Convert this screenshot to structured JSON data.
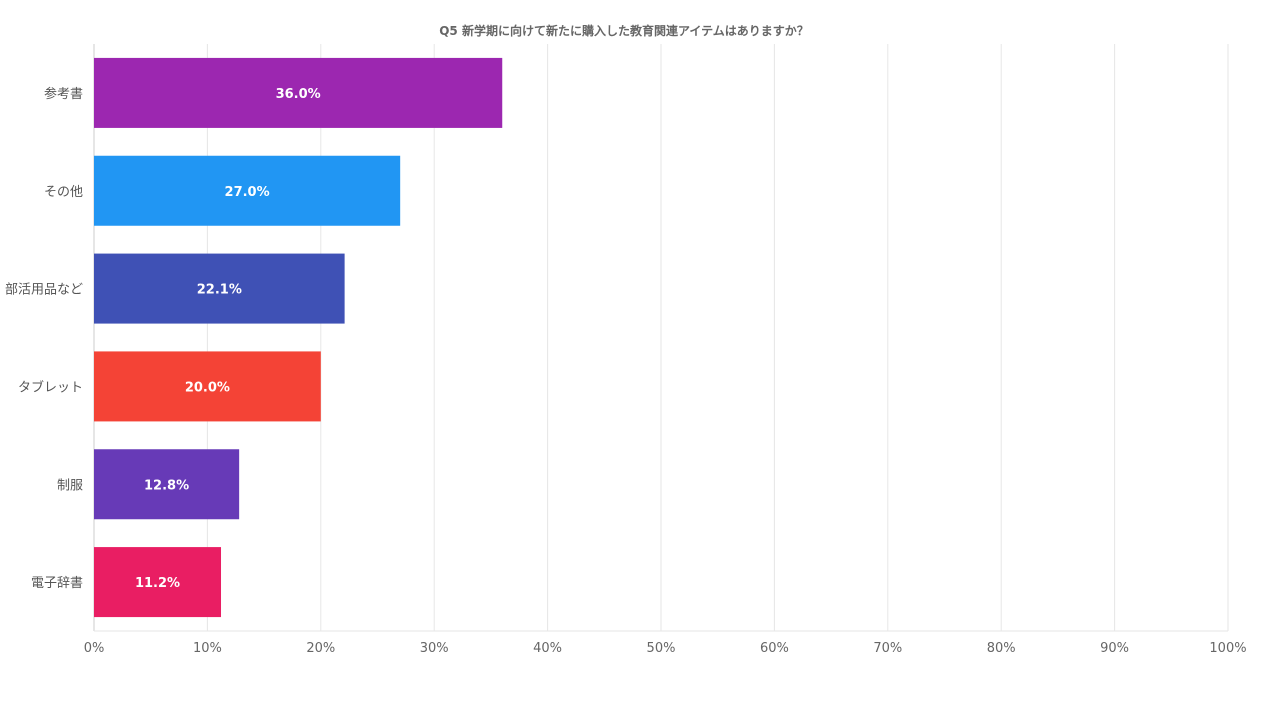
{
  "chart_data": {
    "type": "bar",
    "orientation": "horizontal",
    "title": "Q5 新学期に向けて新たに購入した教育関連アイテムはありますか？",
    "categories": [
      "参考書",
      "その他",
      "部活用品など",
      "タブレット",
      "制服",
      "電子辞書"
    ],
    "values": [
      36.0,
      27.0,
      22.1,
      20.0,
      12.8,
      11.2
    ],
    "data_labels": [
      "36.0%",
      "27.0%",
      "22.1%",
      "20.0%",
      "12.8%",
      "11.2%"
    ],
    "colors": [
      "#9c27b0",
      "#2196f3",
      "#3f51b5",
      "#f44336",
      "#673ab7",
      "#e91e63"
    ],
    "xlim": [
      0,
      100
    ],
    "x_ticks": [
      "0%",
      "10%",
      "20%",
      "30%",
      "40%",
      "50%",
      "60%",
      "70%",
      "80%",
      "90%",
      "100%"
    ],
    "xlabel": "",
    "ylabel": "",
    "grid": true,
    "legend": "none"
  }
}
